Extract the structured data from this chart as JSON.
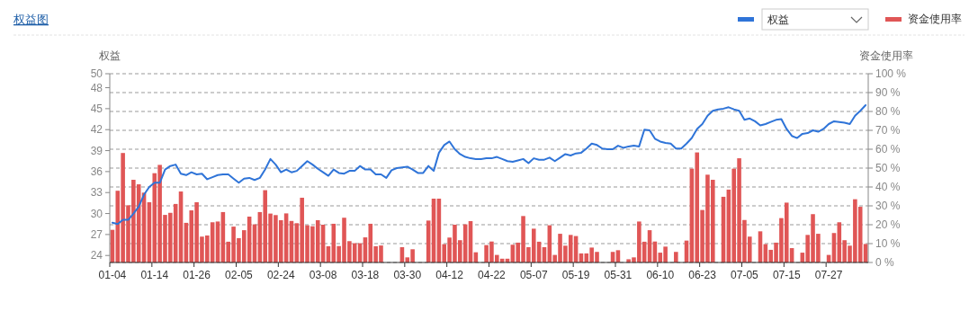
{
  "chart_data": {
    "type": "bar",
    "title": "权益图",
    "ylabel": "权益",
    "y2label": "资金使用率",
    "categories": [
      "01-04",
      null,
      null,
      null,
      null,
      null,
      null,
      null,
      "01-14",
      null,
      null,
      null,
      null,
      null,
      null,
      null,
      "01-26",
      null,
      null,
      null,
      null,
      null,
      null,
      null,
      "02-05",
      null,
      null,
      null,
      null,
      null,
      null,
      null,
      "02-24",
      null,
      null,
      null,
      null,
      null,
      null,
      null,
      "03-08",
      null,
      null,
      null,
      null,
      null,
      null,
      null,
      "03-18",
      null,
      null,
      null,
      null,
      null,
      null,
      null,
      "03-30",
      null,
      null,
      null,
      null,
      null,
      null,
      null,
      "04-12",
      null,
      null,
      null,
      null,
      null,
      null,
      null,
      "04-22",
      null,
      null,
      null,
      null,
      null,
      null,
      null,
      "05-07",
      null,
      null,
      null,
      null,
      null,
      null,
      null,
      "05-19",
      null,
      null,
      null,
      null,
      null,
      null,
      null,
      "05-31",
      null,
      null,
      null,
      null,
      null,
      null,
      null,
      "06-10",
      null,
      null,
      null,
      null,
      null,
      null,
      null,
      "06-23",
      null,
      null,
      null,
      null,
      null,
      null,
      null,
      "07-05",
      null,
      null,
      null,
      null,
      null,
      null,
      null,
      "07-15",
      null,
      null,
      null,
      null,
      null,
      null,
      null,
      "07-27",
      null,
      null,
      null,
      null,
      null,
      null,
      null
    ],
    "series": [
      {
        "name": "权益",
        "type": "line",
        "color": "#2f74d8",
        "values": [
          28.7,
          28.5,
          29.1,
          29.1,
          30,
          31,
          32.7,
          33.8,
          34.4,
          34.4,
          36.3,
          36.8,
          37,
          35.7,
          35.5,
          35.9,
          35.6,
          35.7,
          34.9,
          35.2,
          35.5,
          35.6,
          35.6,
          35,
          34.4,
          35,
          35.1,
          34.8,
          35.1,
          36.3,
          37.8,
          37,
          35.9,
          36.3,
          35.9,
          36.1,
          36.8,
          37.5,
          37,
          36.4,
          35.9,
          35.4,
          36.3,
          35.8,
          35.7,
          36.1,
          36.1,
          36.8,
          36.3,
          36.3,
          35.6,
          35.6,
          35.1,
          36.2,
          36.5,
          36.6,
          36.7,
          36.3,
          35.8,
          35.8,
          36.8,
          36.1,
          38.7,
          39.8,
          40.3,
          39.2,
          38.5,
          38.1,
          37.9,
          37.8,
          37.8,
          37.9,
          37.9,
          38.1,
          37.8,
          37.5,
          37.4,
          37.6,
          37.8,
          37.2,
          37.9,
          37.7,
          37.7,
          38,
          37.5,
          38,
          38.5,
          38.3,
          38.6,
          38.7,
          39.3,
          40,
          39.8,
          39.3,
          39.2,
          39.2,
          39.7,
          39.4,
          39.6,
          39.7,
          39.6,
          42,
          41.9,
          40.7,
          40.3,
          40.1,
          40,
          39.3,
          39.3,
          40,
          40.8,
          42.1,
          42.8,
          44,
          44.7,
          44.9,
          45,
          45.2,
          44.9,
          44.7,
          43.4,
          43.6,
          43.2,
          42.6,
          42.8,
          43.1,
          43.4,
          43.5,
          42.1,
          41.1,
          40.8,
          41.4,
          41.5,
          41.9,
          41.7,
          42.1,
          42.8,
          43.2,
          43.1,
          43,
          42.8,
          44,
          44.7,
          45.5
        ]
      },
      {
        "name": "资金使用率",
        "axis": "y2",
        "color": "#e05656",
        "values": [
          17.3,
          38,
          58,
          30.3,
          43.8,
          41.4,
          37,
          31.9,
          47.3,
          51.7,
          25.2,
          26.3,
          31,
          37.6,
          21,
          27.6,
          31.9,
          13.7,
          14.3,
          21.3,
          21.7,
          26.7,
          11,
          19,
          12.9,
          17.1,
          24.3,
          20.2,
          26.7,
          38.3,
          25.9,
          25.1,
          22.4,
          26,
          22,
          20.8,
          34.3,
          19.7,
          19.2,
          22.4,
          20,
          8.6,
          20.5,
          8.7,
          23.7,
          11.3,
          10.2,
          10.2,
          13.3,
          20.5,
          8.6,
          9,
          null,
          null,
          null,
          8.1,
          2.7,
          7,
          null,
          null,
          22.2,
          33.8,
          33.8,
          9.7,
          13.2,
          20,
          11.8,
          20.2,
          21.9,
          5.4,
          null,
          9.2,
          11.1,
          4,
          2,
          2,
          9.4,
          10.5,
          24.6,
          8.1,
          17.9,
          11,
          8.1,
          19.7,
          4,
          15.2,
          8.9,
          14.6,
          14,
          4.8,
          4.8,
          7.9,
          5.6,
          null,
          null,
          5.6,
          6.5,
          null,
          1.7,
          2.7,
          21.7,
          11,
          17.1,
          11.1,
          5.2,
          8.4,
          null,
          5.6,
          null,
          11.6,
          49.7,
          58.3,
          27.8,
          46.5,
          43.8,
          null,
          34.8,
          38.6,
          49.7,
          55.2,
          22.5,
          13.7,
          null,
          16.5,
          9.7,
          6.7,
          10.5,
          23.5,
          31.7,
          7.6,
          null,
          5.2,
          14.6,
          25.6,
          15.2,
          null,
          4,
          15.6,
          21.3,
          11.8,
          8.9,
          33.5,
          29.5,
          9.8
        ]
      }
    ],
    "ylim": [
      23,
      50
    ],
    "yticks": [
      24,
      27,
      30,
      33,
      36,
      39,
      42,
      45,
      48,
      50
    ],
    "y2lim": [
      0,
      100
    ],
    "y2ticks": [
      {
        "value": 0,
        "label": "0 %"
      },
      {
        "value": 10,
        "label": "10 %"
      },
      {
        "value": 20,
        "label": "20 %"
      },
      {
        "value": 30,
        "label": "30 %"
      },
      {
        "value": 40,
        "label": "40 %"
      },
      {
        "value": 50,
        "label": "50 %"
      },
      {
        "value": 60,
        "label": "60 %"
      },
      {
        "value": 70,
        "label": "70 %"
      },
      {
        "value": 80,
        "label": "80 %"
      },
      {
        "value": 90,
        "label": "90 %"
      },
      {
        "value": 100,
        "label": "100 %"
      }
    ],
    "grid": "y2",
    "legend": "top right"
  }
}
